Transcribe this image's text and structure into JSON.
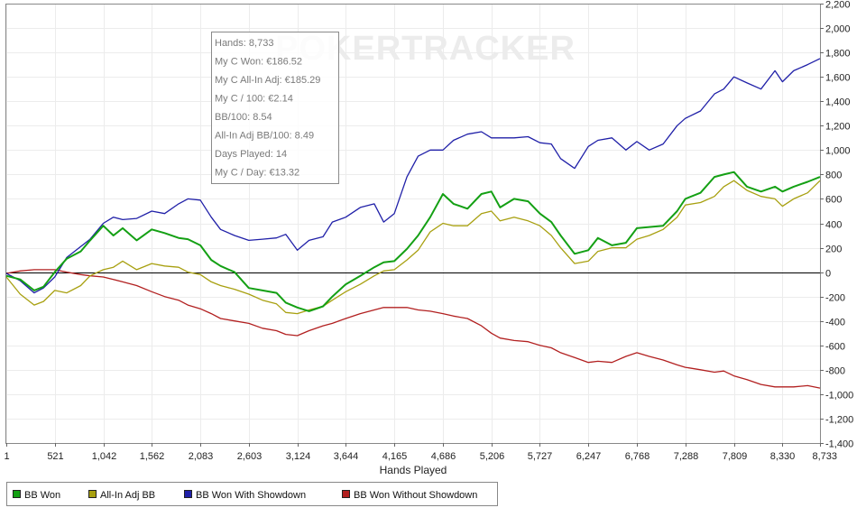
{
  "chart_data": {
    "type": "line",
    "xlabel": "Hands Played",
    "ylabel": "",
    "xlim": [
      1,
      8733
    ],
    "ylim": [
      -1400,
      2200
    ],
    "x_ticks": [
      1,
      521,
      1042,
      1562,
      2083,
      2603,
      3124,
      3644,
      4165,
      4686,
      5206,
      5727,
      6247,
      6768,
      7288,
      7809,
      8330,
      8733
    ],
    "x_tick_labels": [
      "1",
      "521",
      "1,042",
      "1,562",
      "2,083",
      "2,603",
      "3,124",
      "3,644",
      "4,165",
      "4,686",
      "5,206",
      "5,727",
      "6,247",
      "6,768",
      "7,288",
      "7,809",
      "8,330",
      "8,733"
    ],
    "y_ticks": [
      -1400,
      -1200,
      -1000,
      -800,
      -600,
      -400,
      -200,
      0,
      200,
      400,
      600,
      800,
      1000,
      1200,
      1400,
      1600,
      1800,
      2000,
      2200
    ],
    "y_tick_labels": [
      "-1,400",
      "-1,200",
      "-1,000",
      "-800",
      "-600",
      "-400",
      "-200",
      "0",
      "200",
      "400",
      "600",
      "800",
      "1,000",
      "1,200",
      "1,400",
      "1,600",
      "1,800",
      "2,000",
      "2,200"
    ],
    "grid": true,
    "legend_position": "bottom",
    "watermark": "POKERTRACKER",
    "series": [
      {
        "name": "BB Won",
        "color": "#14a014",
        "x": [
          1,
          150,
          300,
          400,
          521,
          650,
          800,
          900,
          1042,
          1150,
          1250,
          1400,
          1562,
          1700,
          1850,
          1950,
          2083,
          2200,
          2300,
          2450,
          2603,
          2750,
          2900,
          3000,
          3124,
          3250,
          3400,
          3500,
          3644,
          3800,
          3950,
          4050,
          4165,
          4300,
          4420,
          4550,
          4686,
          4800,
          4950,
          5100,
          5206,
          5300,
          5450,
          5600,
          5727,
          5850,
          5950,
          6100,
          6247,
          6350,
          6500,
          6650,
          6768,
          6900,
          7050,
          7200,
          7288,
          7450,
          7600,
          7700,
          7809,
          7950,
          8100,
          8250,
          8330,
          8450,
          8600,
          8733
        ],
        "y": [
          -30,
          -60,
          -150,
          -120,
          0,
          110,
          170,
          260,
          380,
          300,
          360,
          260,
          350,
          320,
          280,
          270,
          220,
          100,
          50,
          0,
          -130,
          -150,
          -170,
          -250,
          -290,
          -320,
          -280,
          -200,
          -100,
          -30,
          40,
          80,
          90,
          190,
          300,
          450,
          640,
          560,
          520,
          640,
          660,
          530,
          600,
          580,
          480,
          410,
          300,
          150,
          180,
          280,
          220,
          240,
          360,
          370,
          380,
          500,
          600,
          650,
          780,
          800,
          820,
          700,
          660,
          700,
          660,
          700,
          740,
          780
        ]
      },
      {
        "name": "All-In Adj BB",
        "color": "#a8a010",
        "x": [
          1,
          150,
          300,
          400,
          521,
          650,
          800,
          900,
          1042,
          1150,
          1250,
          1400,
          1562,
          1700,
          1850,
          1950,
          2083,
          2200,
          2300,
          2450,
          2603,
          2750,
          2900,
          3000,
          3124,
          3250,
          3400,
          3500,
          3644,
          3800,
          3950,
          4050,
          4165,
          4300,
          4420,
          4550,
          4686,
          4800,
          4950,
          5100,
          5206,
          5300,
          5450,
          5600,
          5727,
          5850,
          5950,
          6100,
          6247,
          6350,
          6500,
          6650,
          6768,
          6900,
          7050,
          7200,
          7288,
          7450,
          7600,
          7700,
          7809,
          7950,
          8100,
          8250,
          8330,
          8450,
          8600,
          8733
        ],
        "y": [
          -40,
          -180,
          -270,
          -240,
          -150,
          -170,
          -110,
          -30,
          20,
          40,
          90,
          20,
          70,
          50,
          40,
          0,
          -20,
          -80,
          -110,
          -140,
          -180,
          -230,
          -260,
          -330,
          -340,
          -310,
          -280,
          -230,
          -160,
          -100,
          -30,
          10,
          20,
          100,
          180,
          330,
          400,
          380,
          380,
          480,
          500,
          420,
          450,
          420,
          380,
          300,
          200,
          70,
          90,
          170,
          200,
          200,
          270,
          300,
          350,
          450,
          550,
          570,
          620,
          700,
          750,
          670,
          620,
          600,
          540,
          600,
          650,
          750
        ]
      },
      {
        "name": "BB Won With Showdown",
        "color": "#2020a8",
        "x": [
          1,
          150,
          300,
          400,
          521,
          650,
          800,
          900,
          1042,
          1150,
          1250,
          1400,
          1562,
          1700,
          1850,
          1950,
          2083,
          2200,
          2300,
          2450,
          2603,
          2750,
          2900,
          3000,
          3124,
          3250,
          3400,
          3500,
          3644,
          3800,
          3950,
          4050,
          4165,
          4300,
          4420,
          4550,
          4686,
          4800,
          4950,
          5100,
          5206,
          5300,
          5450,
          5600,
          5727,
          5850,
          5950,
          6100,
          6247,
          6350,
          6500,
          6650,
          6768,
          6900,
          7050,
          7200,
          7288,
          7450,
          7600,
          7700,
          7809,
          7950,
          8100,
          8250,
          8330,
          8450,
          8600,
          8733
        ],
        "y": [
          -10,
          -70,
          -170,
          -130,
          -40,
          120,
          210,
          270,
          400,
          450,
          430,
          440,
          500,
          480,
          560,
          600,
          590,
          450,
          350,
          300,
          260,
          270,
          280,
          310,
          180,
          260,
          290,
          410,
          450,
          530,
          560,
          410,
          480,
          780,
          950,
          1000,
          1000,
          1080,
          1130,
          1150,
          1100,
          1100,
          1100,
          1110,
          1060,
          1050,
          930,
          850,
          1030,
          1080,
          1100,
          1000,
          1070,
          1000,
          1050,
          1200,
          1260,
          1320,
          1460,
          1500,
          1600,
          1550,
          1500,
          1650,
          1560,
          1650,
          1700,
          1750
        ]
      },
      {
        "name": "BB Won Without Showdown",
        "color": "#b22020",
        "x": [
          1,
          150,
          300,
          400,
          521,
          650,
          800,
          900,
          1042,
          1150,
          1250,
          1400,
          1562,
          1700,
          1850,
          1950,
          2083,
          2200,
          2300,
          2450,
          2603,
          2750,
          2900,
          3000,
          3124,
          3250,
          3400,
          3500,
          3644,
          3800,
          3950,
          4050,
          4165,
          4300,
          4420,
          4550,
          4686,
          4800,
          4950,
          5100,
          5206,
          5300,
          5450,
          5600,
          5727,
          5850,
          5950,
          6100,
          6247,
          6350,
          6500,
          6650,
          6768,
          6900,
          7050,
          7200,
          7288,
          7450,
          7600,
          7700,
          7809,
          7950,
          8100,
          8250,
          8330,
          8450,
          8600,
          8733
        ],
        "y": [
          -10,
          10,
          20,
          20,
          20,
          0,
          -20,
          -30,
          -40,
          -60,
          -80,
          -110,
          -160,
          -200,
          -230,
          -270,
          -300,
          -340,
          -380,
          -400,
          -420,
          -460,
          -480,
          -510,
          -520,
          -480,
          -440,
          -420,
          -380,
          -340,
          -310,
          -290,
          -290,
          -290,
          -310,
          -320,
          -340,
          -360,
          -380,
          -440,
          -500,
          -540,
          -560,
          -570,
          -600,
          -620,
          -660,
          -700,
          -740,
          -730,
          -740,
          -690,
          -660,
          -690,
          -720,
          -760,
          -780,
          -800,
          -820,
          -810,
          -850,
          -880,
          -920,
          -940,
          -940,
          -940,
          -930,
          -950
        ]
      }
    ]
  },
  "tooltip": {
    "lines": [
      "Hands: 8,733",
      "My C Won: €186.52",
      "My C All-In Adj: €185.29",
      "My C / 100: €2.14",
      "BB/100: 8.54",
      "All-In Adj BB/100: 8.49",
      "Days Played: 14",
      "My C / Day: €13.32"
    ]
  }
}
